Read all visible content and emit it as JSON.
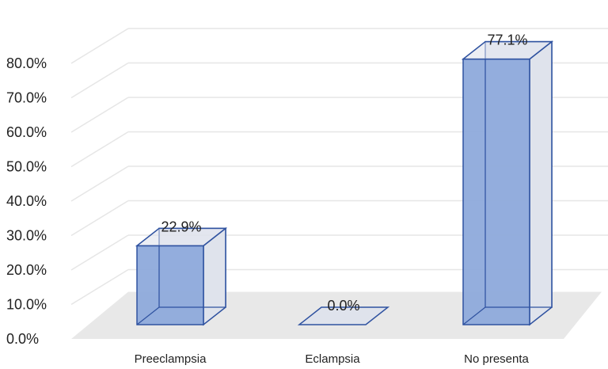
{
  "chart_data": {
    "type": "bar",
    "categories": [
      "Preeclampsia",
      "Eclampsia",
      "No presenta"
    ],
    "values": [
      22.9,
      0.0,
      77.1
    ],
    "data_labels": [
      "22.9%",
      "0.0%",
      "77.1%"
    ],
    "y_ticks": [
      "0.0%",
      "10.0%",
      "20.0%",
      "30.0%",
      "40.0%",
      "50.0%",
      "60.0%",
      "70.0%",
      "80.0%"
    ],
    "ylim": [
      0,
      80
    ],
    "grid": true,
    "style_3d": true,
    "colors": {
      "bar_front": "#8eaadb",
      "bar_side": "#dfe3ec",
      "bar_edge": "#2f52a0",
      "grid": "#e6e6e6",
      "floor": "#e8e8e8"
    }
  }
}
